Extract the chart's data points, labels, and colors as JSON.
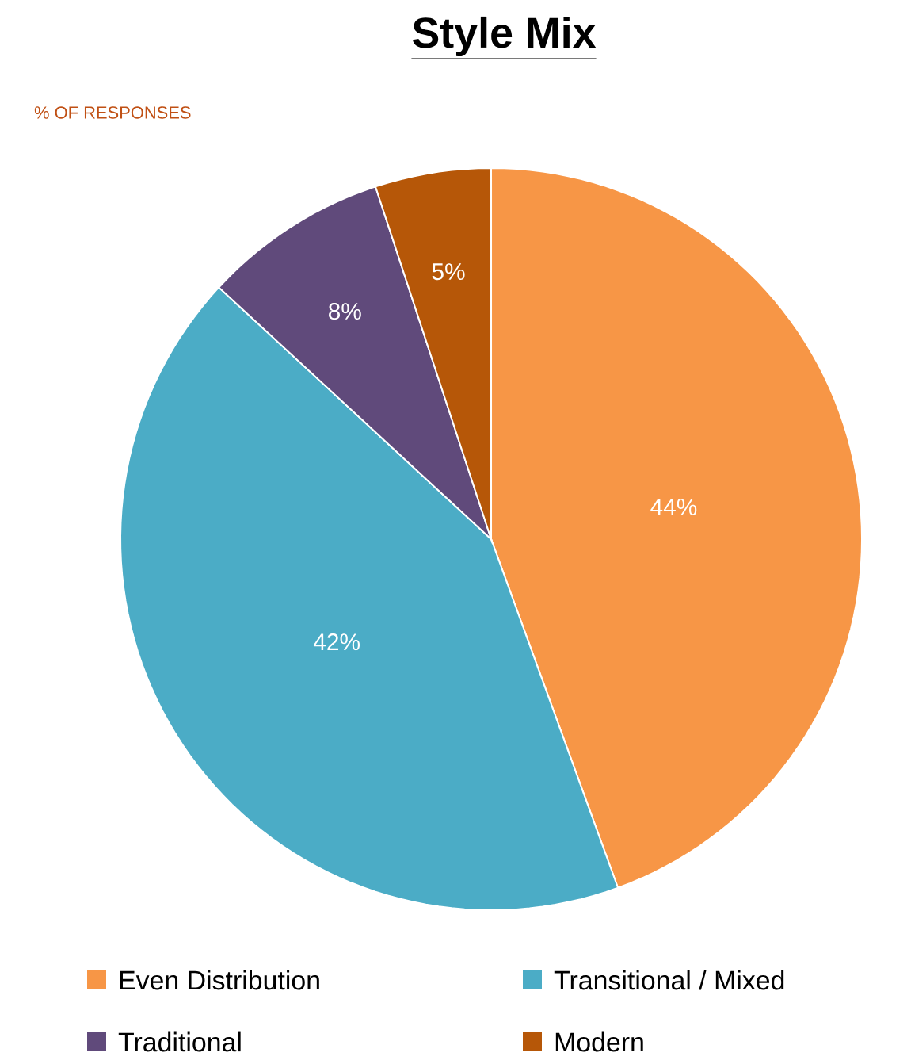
{
  "chart_data": {
    "type": "pie",
    "title": "Style Mix",
    "subtitle": "% OF RESPONSES",
    "categories": [
      "Even Distribution",
      "Transitional / Mixed",
      "Traditional",
      "Modern"
    ],
    "values": [
      44,
      42,
      8,
      5
    ],
    "colors": [
      "#f79646",
      "#4bacc6",
      "#604a7b",
      "#b65708"
    ],
    "value_labels": [
      "44%",
      "42%",
      "8%",
      "5%"
    ],
    "legend": "bottom"
  }
}
